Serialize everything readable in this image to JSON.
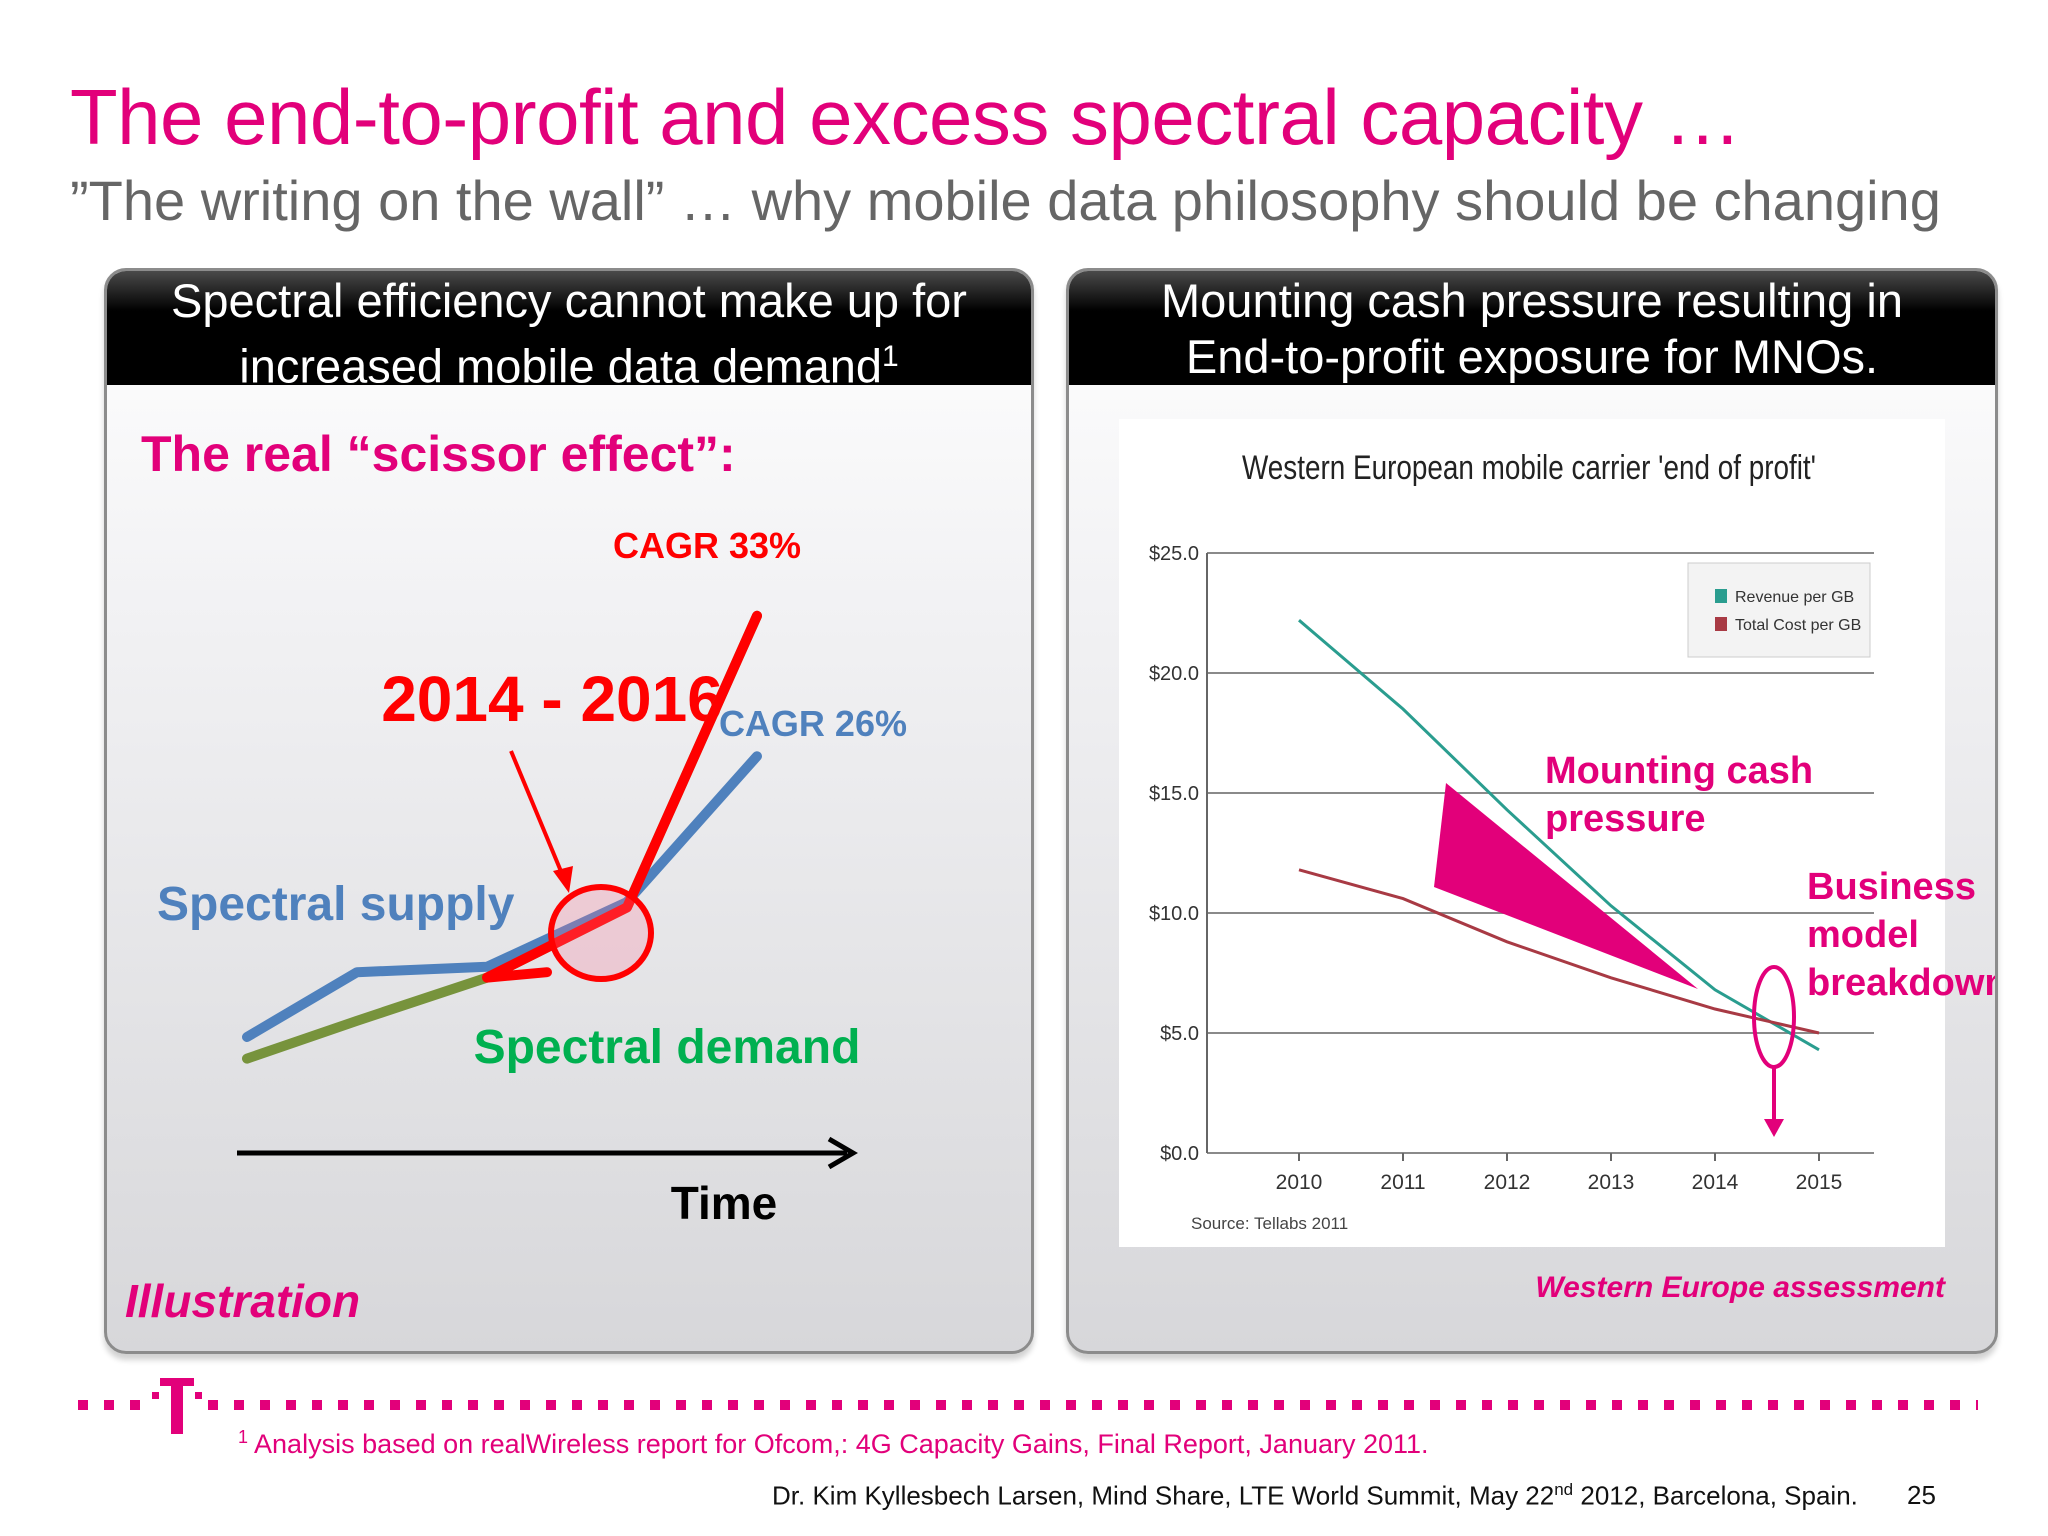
{
  "slide": {
    "title": "The end-to-profit and excess spectral capacity …",
    "subtitle": "”The writing on the wall” … why mobile data philosophy should be changing",
    "brand_color": "#e2007a"
  },
  "left_panel": {
    "header_line1": "Spectral efficiency cannot make up for",
    "header_line2": "increased mobile data demand",
    "header_sup": "1",
    "heading": "The real “scissor effect”:",
    "years": "2014 - 2016",
    "cagr_demand": "CAGR 33%",
    "cagr_supply": "CAGR 26%",
    "supply_label": "Spectral supply",
    "demand_label": "Spectral demand",
    "time_label": "Time",
    "illustration_label": "Illustration"
  },
  "right_panel": {
    "header_line1": "Mounting cash pressure resulting in",
    "header_line2": "End-to-profit exposure for MNOs.",
    "annotation_cash_line1": "Mounting cash",
    "annotation_cash_line2": "pressure",
    "annotation_breakdown_line1": "Business",
    "annotation_breakdown_line2": "model",
    "annotation_breakdown_line3": "breakdown",
    "assessment": "Western Europe assessment"
  },
  "chart_data": [
    {
      "type": "line",
      "title": "The real “scissor effect”:",
      "xlabel": "Time",
      "ylabel": "",
      "illustrative": true,
      "series": [
        {
          "name": "Spectral supply",
          "color": "#4f81bd",
          "annotation": "CAGR 26%",
          "values": [
            1.0,
            2.2,
            2.3,
            3.5,
            6.2
          ]
        },
        {
          "name": "Spectral demand",
          "color": "#77933c",
          "annotation": "CAGR 33%",
          "values": [
            0.6,
            1.3,
            2.1,
            3.4,
            8.8
          ]
        }
      ],
      "crossover": "2014 - 2016"
    },
    {
      "type": "line",
      "title": "Western European mobile carrier 'end of profit'",
      "x": [
        2010,
        2011,
        2012,
        2013,
        2014,
        2015
      ],
      "ylim": [
        0,
        25
      ],
      "yticks": [
        "$25.0",
        "$20.0",
        "$15.0",
        "$10.0",
        "$5.0",
        "$0.0"
      ],
      "grid": true,
      "legend": "top-right",
      "series": [
        {
          "name": "Revenue per GB",
          "color": "#2a9d8f",
          "values": [
            22.2,
            18.5,
            14.3,
            10.3,
            6.8,
            4.3
          ]
        },
        {
          "name": "Total Cost per GB",
          "color": "#a83a44",
          "values": [
            11.8,
            10.6,
            8.8,
            7.3,
            6.0,
            5.0
          ]
        }
      ],
      "source": "Source: Tellabs 2011"
    }
  ],
  "footer": {
    "footnote_sup": "1",
    "footnote": "Analysis based on realWireless report for Ofcom,: 4G Capacity Gains, Final Report, January 2011.",
    "credit_pre": "Dr. Kim Kyllesbech Larsen, Mind Share, LTE World Summit, May 22",
    "credit_sup": "nd",
    "credit_post": " 2012, Barcelona, Spain.",
    "page": "25",
    "logo_letter": "T"
  }
}
